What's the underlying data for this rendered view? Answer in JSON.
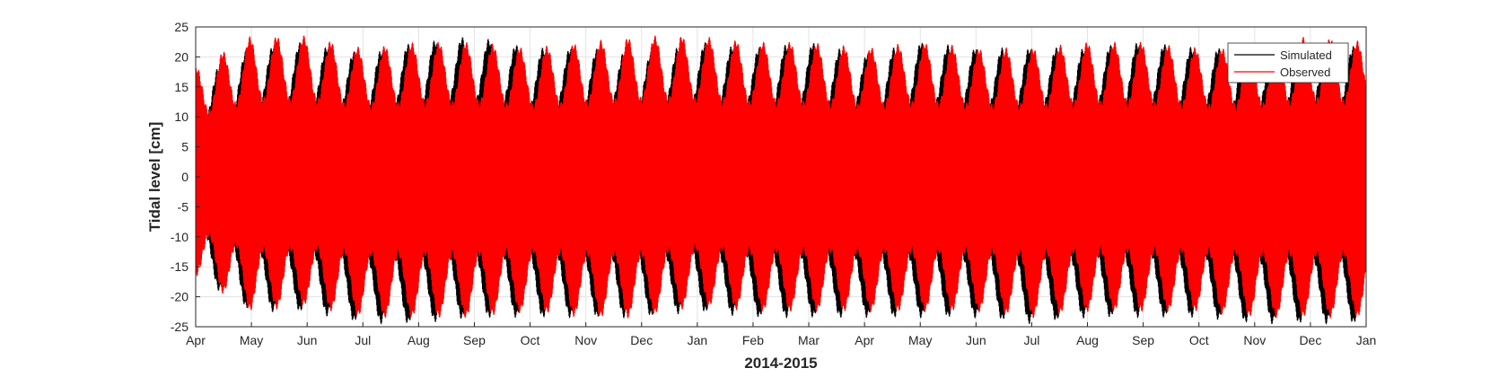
{
  "chart_data": {
    "type": "line",
    "xlabel": "2014-2015",
    "ylabel": "Tidal level [cm]",
    "ylim": [
      -25,
      25
    ],
    "yticks": [
      -25,
      -20,
      -15,
      -10,
      -5,
      0,
      5,
      10,
      15,
      20,
      25
    ],
    "xticks": [
      "Apr",
      "May",
      "Jun",
      "Jul",
      "Aug",
      "Sep",
      "Oct",
      "Nov",
      "Dec",
      "Jan",
      "Feb",
      "Mar",
      "Apr",
      "May",
      "Jun",
      "Jul",
      "Aug",
      "Sep",
      "Oct",
      "Nov",
      "Dec",
      "Jan"
    ],
    "grid": true,
    "legend_location": "top-right",
    "series": [
      {
        "name": "Simulated",
        "color": "#000000",
        "envelope_months": [
          "Apr",
          "May",
          "Jun",
          "Jul",
          "Aug",
          "Sep",
          "Oct",
          "Nov",
          "Dec",
          "Jan",
          "Feb",
          "Mar",
          "Apr",
          "May",
          "Jun",
          "Jul",
          "Aug",
          "Sep",
          "Oct",
          "Nov",
          "Dec",
          "Jan"
        ],
        "max_approx": [
          16,
          21,
          22,
          20,
          22,
          23,
          21,
          21,
          20,
          22,
          21,
          22,
          20,
          22,
          21,
          21,
          21,
          22,
          21,
          21,
          22,
          21
        ],
        "min_approx": [
          -16,
          -22,
          -22,
          -24,
          -24,
          -23,
          -23,
          -23,
          -23,
          -22,
          -23,
          -23,
          -23,
          -23,
          -23,
          -24,
          -23,
          -23,
          -23,
          -24,
          -24,
          -24
        ]
      },
      {
        "name": "Observed",
        "color": "#ff0000",
        "envelope_months": [
          "Apr",
          "May",
          "Jun",
          "Jul",
          "Aug",
          "Sep",
          "Oct",
          "Nov",
          "Dec",
          "Jan",
          "Feb",
          "Mar",
          "Apr",
          "May",
          "Jun",
          "Jul",
          "Aug",
          "Sep",
          "Oct",
          "Nov",
          "Dec",
          "Jan"
        ],
        "max_approx": [
          18,
          23,
          23,
          21,
          22,
          22,
          21,
          22,
          23,
          23,
          22,
          22,
          21,
          22,
          21,
          21,
          22,
          22,
          21,
          21,
          23,
          22
        ],
        "min_approx": [
          -16,
          -22,
          -21,
          -23,
          -23,
          -23,
          -22,
          -23,
          -23,
          -21,
          -22,
          -22,
          -22,
          -22,
          -22,
          -23,
          -22,
          -22,
          -22,
          -23,
          -23,
          -23
        ]
      }
    ]
  }
}
